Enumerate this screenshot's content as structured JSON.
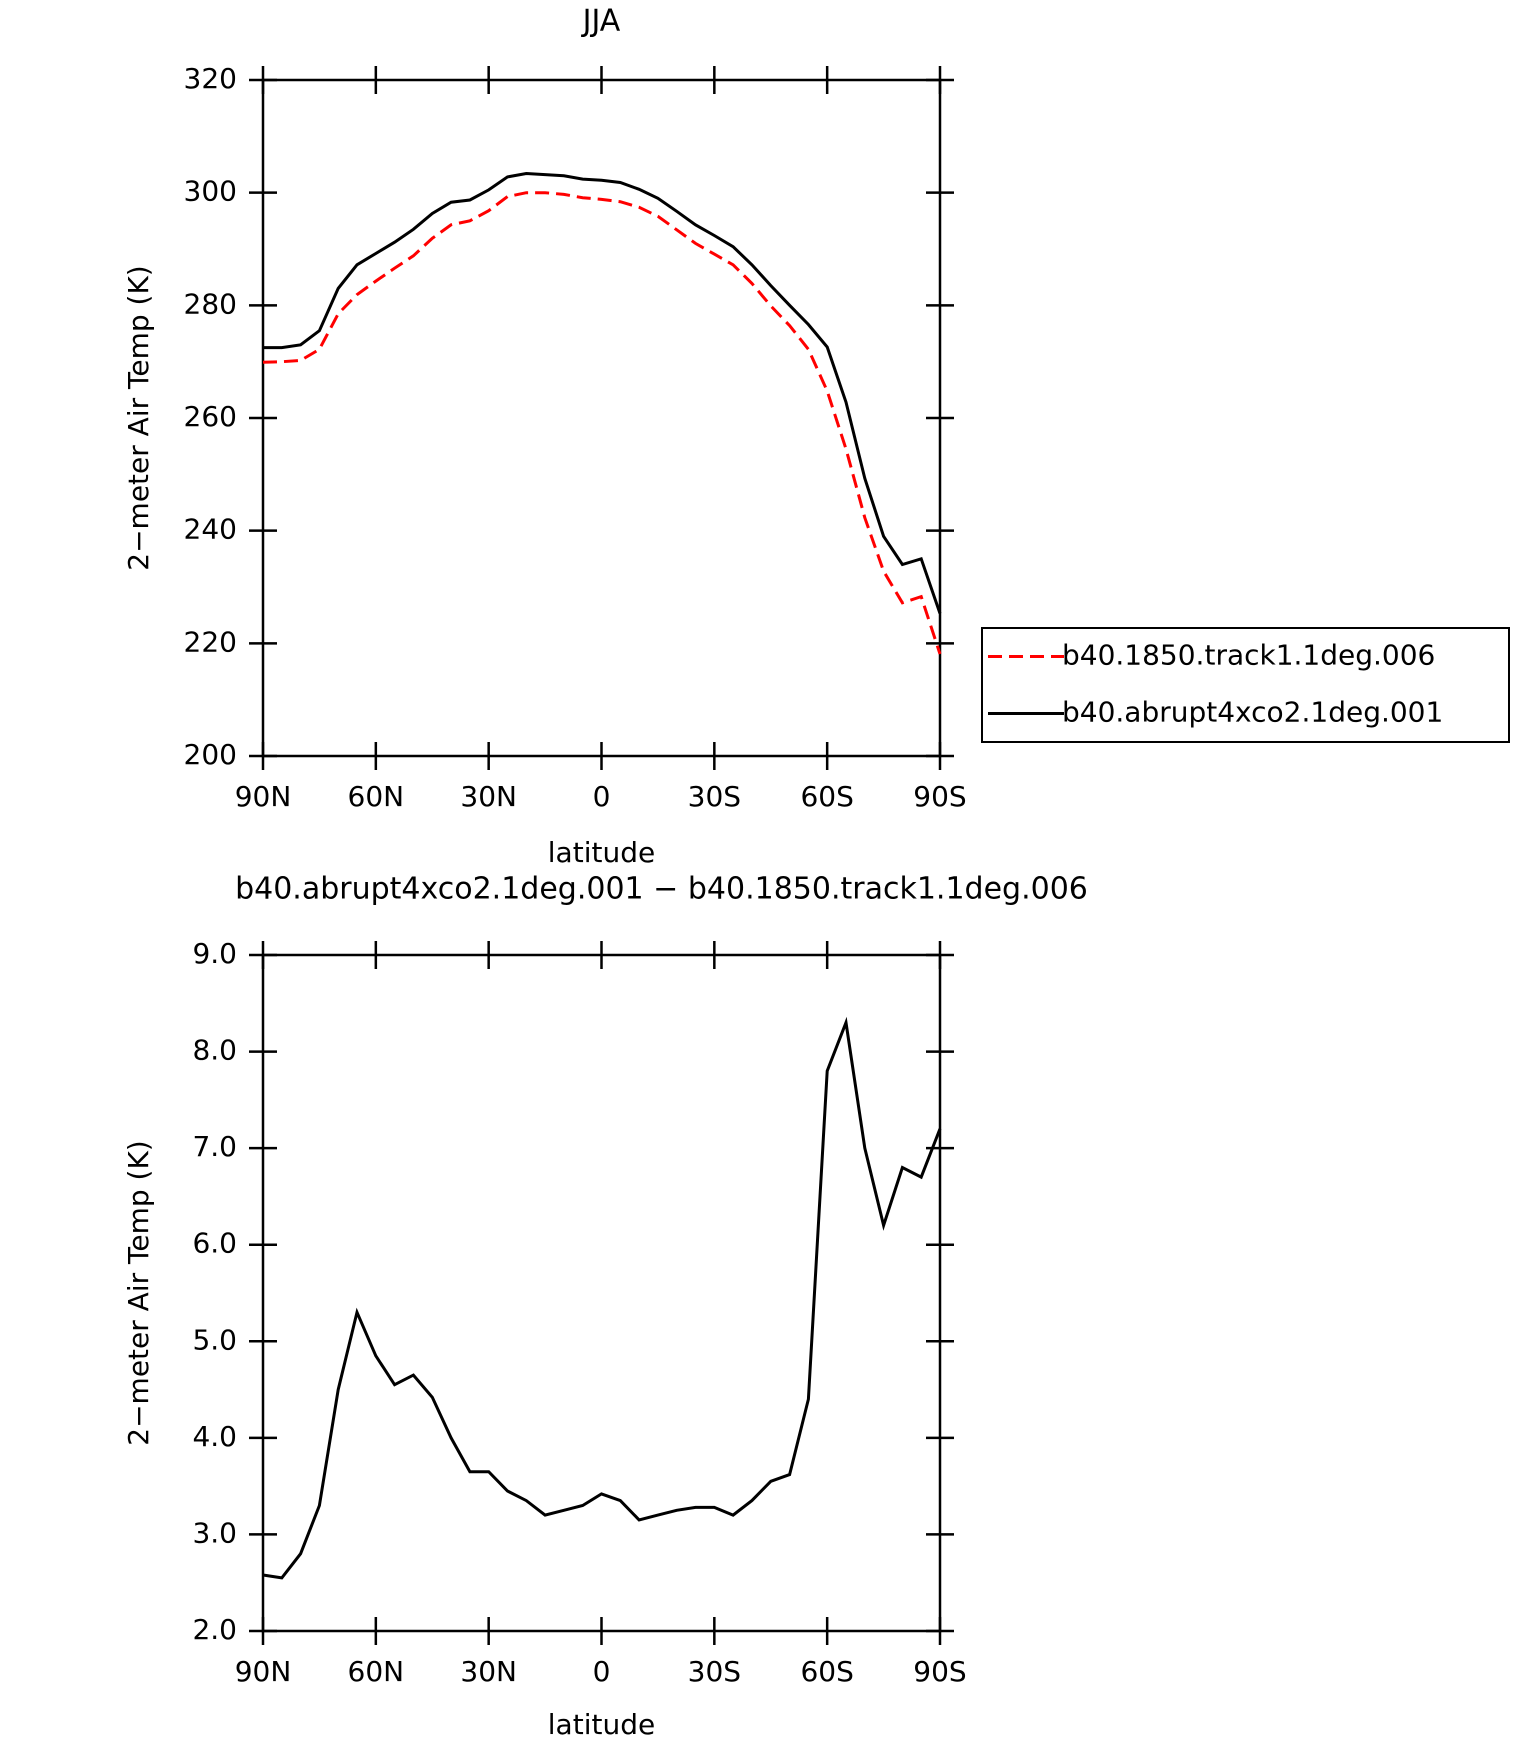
{
  "chart_data": [
    {
      "type": "line",
      "title": "JJA",
      "xlabel": "latitude",
      "ylabel": "2−meter Air Temp (K)",
      "x": [
        90,
        85,
        80,
        75,
        70,
        65,
        60,
        55,
        50,
        45,
        40,
        35,
        30,
        25,
        20,
        15,
        10,
        5,
        0,
        -5,
        -10,
        -15,
        -20,
        -25,
        -30,
        -35,
        -40,
        -45,
        -50,
        -55,
        -60,
        -65,
        -70,
        -75,
        -80,
        -85,
        -90
      ],
      "xlim": [
        90,
        -90
      ],
      "xticks": [
        {
          "value": 90,
          "label": "90N"
        },
        {
          "value": 60,
          "label": "60N"
        },
        {
          "value": 30,
          "label": "30N"
        },
        0,
        {
          "value": -30,
          "label": "30S"
        },
        {
          "value": -60,
          "label": "60S"
        },
        {
          "value": -90,
          "label": "90S"
        }
      ],
      "ylim": [
        200,
        320
      ],
      "yticks": [
        200,
        220,
        240,
        260,
        280,
        300,
        320
      ],
      "legend": "right",
      "series": [
        {
          "name": "b40.1850.track1.1deg.006",
          "color": "#ff0000",
          "line_style": "dashed",
          "values": [
            269.9,
            270,
            270.2,
            272.2,
            278.5,
            281.9,
            284.3,
            286.6,
            288.8,
            291.9,
            294.3,
            295,
            296.8,
            299.3,
            300,
            300,
            299.7,
            299.1,
            298.8,
            298.4,
            297.4,
            295.8,
            293.4,
            291,
            289.1,
            287.2,
            283.9,
            279.9,
            276.4,
            272.2,
            264.8,
            254.5,
            242.3,
            232.8,
            227.2,
            228.3,
            218.1
          ]
        },
        {
          "name": "b40.abrupt4xco2.1deg.001",
          "color": "#000000",
          "line_style": "solid",
          "values": [
            272.5,
            272.5,
            273,
            275.5,
            283,
            287.2,
            289.2,
            291.2,
            293.5,
            296.3,
            298.3,
            298.7,
            300.5,
            302.8,
            303.4,
            303.2,
            303,
            302.4,
            302.2,
            301.8,
            300.6,
            299,
            296.7,
            294.3,
            292.4,
            290.4,
            287.2,
            283.5,
            280,
            276.6,
            272.6,
            262.8,
            249.3,
            239,
            234,
            235,
            225.3
          ]
        }
      ]
    },
    {
      "type": "line",
      "title": "b40.abrupt4xco2.1deg.001 − b40.1850.track1.1deg.006",
      "xlabel": "latitude",
      "ylabel": "2−meter Air Temp (K)",
      "x": [
        90,
        85,
        80,
        75,
        70,
        65,
        60,
        55,
        50,
        45,
        40,
        35,
        30,
        25,
        20,
        15,
        10,
        5,
        0,
        -5,
        -10,
        -15,
        -20,
        -25,
        -30,
        -35,
        -40,
        -45,
        -50,
        -55,
        -60,
        -65,
        -70,
        -75,
        -80,
        -85,
        -90
      ],
      "xlim": [
        90,
        -90
      ],
      "xticks": [
        {
          "value": 90,
          "label": "90N"
        },
        {
          "value": 60,
          "label": "60N"
        },
        {
          "value": 30,
          "label": "30N"
        },
        0,
        {
          "value": -30,
          "label": "30S"
        },
        {
          "value": -60,
          "label": "60S"
        },
        {
          "value": -90,
          "label": "90S"
        }
      ],
      "ylim": [
        2,
        9
      ],
      "yticks": [
        {
          "value": 2,
          "label": "2.0"
        },
        {
          "value": 3,
          "label": "3.0"
        },
        {
          "value": 4,
          "label": "4.0"
        },
        {
          "value": 5,
          "label": "5.0"
        },
        {
          "value": 6,
          "label": "6.0"
        },
        {
          "value": 7,
          "label": "7.0"
        },
        {
          "value": 8,
          "label": "8.0"
        },
        {
          "value": 9,
          "label": "9.0"
        }
      ],
      "series": [
        {
          "color": "#000000",
          "line_style": "solid",
          "values": [
            2.58,
            2.55,
            2.8,
            3.3,
            4.5,
            5.3,
            4.85,
            4.55,
            4.65,
            4.42,
            4.0,
            3.65,
            3.65,
            3.45,
            3.35,
            3.2,
            3.25,
            3.3,
            3.42,
            3.35,
            3.15,
            3.2,
            3.25,
            3.28,
            3.28,
            3.2,
            3.35,
            3.55,
            3.62,
            4.4,
            7.8,
            8.3,
            7.0,
            6.2,
            6.8,
            6.7,
            7.2
          ]
        }
      ]
    }
  ]
}
